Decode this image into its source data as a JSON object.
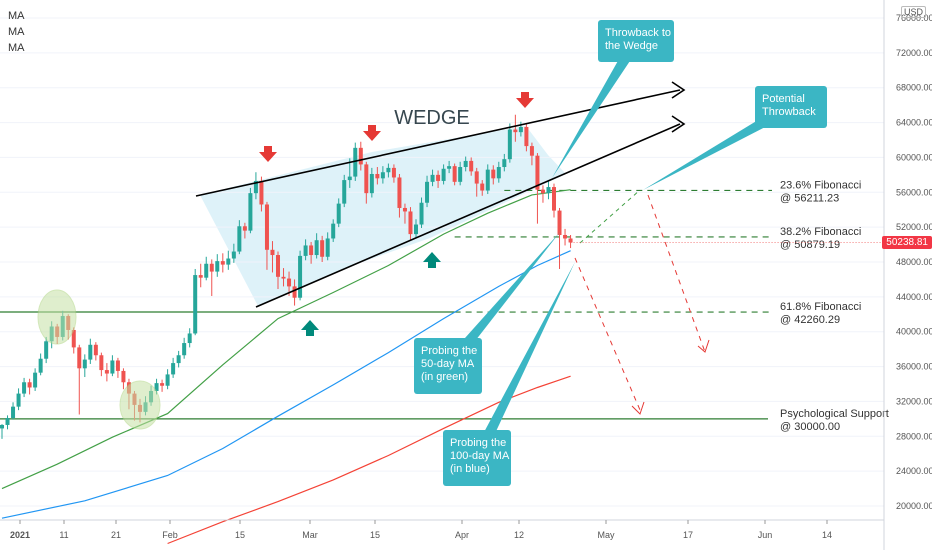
{
  "legend": [
    "MA",
    "MA",
    "MA"
  ],
  "currency": "USD",
  "last_price": "50238.81",
  "colors": {
    "up": "#26a69a",
    "down": "#ef5350",
    "ma50": "#43a047",
    "ma100": "#2196f3",
    "ma200": "#f44336",
    "wedge_fill": "#d6eff7",
    "callout": "#3bb6c4",
    "fib": "#2e7d32",
    "support": "#2e7d32",
    "bear_arrow": "#e53935",
    "bull_arrow": "#00897b"
  },
  "chart_data": {
    "type": "candlestick",
    "title": "",
    "ylim": [
      16000,
      77000
    ],
    "y_ticks": [
      "20000.00",
      "24000.00",
      "28000.00",
      "32000.00",
      "36000.00",
      "40000.00",
      "44000.00",
      "48000.00",
      "52000.00",
      "56000.00",
      "60000.00",
      "64000.00",
      "68000.00",
      "72000.00",
      "76000.00"
    ],
    "x_ticks": [
      "2021",
      "11",
      "21",
      "Feb",
      "15",
      "Mar",
      "15",
      "Apr",
      "12",
      "May",
      "17",
      "Jun",
      "14"
    ],
    "candles": [
      [
        28900,
        29300,
        27700,
        29400
      ],
      [
        29300,
        30100,
        28800,
        30400
      ],
      [
        30100,
        31400,
        29900,
        31900
      ],
      [
        31400,
        32900,
        31000,
        33500
      ],
      [
        32900,
        34200,
        32500,
        34700
      ],
      [
        34200,
        33600,
        32800,
        34600
      ],
      [
        33600,
        35300,
        33200,
        35800
      ],
      [
        35300,
        36900,
        35000,
        37500
      ],
      [
        36900,
        38900,
        36400,
        39400
      ],
      [
        38900,
        40600,
        38100,
        41200
      ],
      [
        40600,
        39400,
        38600,
        40900
      ],
      [
        39400,
        41800,
        39000,
        42400
      ],
      [
        41800,
        40200,
        39100,
        42000
      ],
      [
        40200,
        38200,
        37500,
        40500
      ],
      [
        38200,
        35800,
        30500,
        38500
      ],
      [
        35800,
        36800,
        34800,
        37400
      ],
      [
        36800,
        38500,
        36300,
        39200
      ],
      [
        38500,
        37300,
        36700,
        38800
      ],
      [
        37300,
        35600,
        34900,
        37600
      ],
      [
        35600,
        35200,
        34300,
        36400
      ],
      [
        35200,
        36700,
        34900,
        37300
      ],
      [
        36700,
        35500,
        34700,
        37000
      ],
      [
        35500,
        34200,
        33400,
        35800
      ],
      [
        34200,
        32900,
        31100,
        34600
      ],
      [
        32900,
        31600,
        29800,
        33200
      ],
      [
        31600,
        30800,
        29600,
        32300
      ],
      [
        30800,
        31900,
        30400,
        32600
      ],
      [
        31900,
        33200,
        31500,
        33800
      ],
      [
        33200,
        34100,
        32800,
        34600
      ],
      [
        34100,
        33800,
        33100,
        34500
      ],
      [
        33800,
        35100,
        33400,
        35700
      ],
      [
        35100,
        36400,
        34700,
        37000
      ],
      [
        36400,
        37300,
        35900,
        37800
      ],
      [
        37300,
        38700,
        36900,
        39300
      ],
      [
        38700,
        39800,
        38200,
        40400
      ],
      [
        39800,
        46500,
        39600,
        47200
      ],
      [
        46500,
        46200,
        45100,
        47800
      ],
      [
        46200,
        47800,
        45900,
        48600
      ],
      [
        47800,
        46900,
        44100,
        48300
      ],
      [
        46900,
        48100,
        46300,
        48900
      ],
      [
        48100,
        47700,
        46800,
        49000
      ],
      [
        47700,
        48400,
        47100,
        49300
      ],
      [
        48400,
        49200,
        47900,
        50100
      ],
      [
        49200,
        52100,
        48900,
        52800
      ],
      [
        52100,
        51600,
        50700,
        52500
      ],
      [
        51600,
        55900,
        51300,
        56500
      ],
      [
        55900,
        57300,
        55200,
        58300
      ],
      [
        57300,
        54600,
        53800,
        57800
      ],
      [
        54600,
        49400,
        47100,
        54900
      ],
      [
        49400,
        48800,
        46800,
        50400
      ],
      [
        48800,
        46300,
        44900,
        49200
      ],
      [
        46300,
        46100,
        45200,
        47300
      ],
      [
        46100,
        45200,
        44100,
        46900
      ],
      [
        45200,
        43900,
        43000,
        46000
      ],
      [
        43900,
        48700,
        43600,
        49300
      ],
      [
        48700,
        49900,
        48200,
        50600
      ],
      [
        49900,
        48800,
        47800,
        50300
      ],
      [
        48800,
        50500,
        48400,
        51300
      ],
      [
        50500,
        48600,
        48000,
        51000
      ],
      [
        48600,
        50700,
        48200,
        51400
      ],
      [
        50700,
        52400,
        50300,
        52900
      ],
      [
        52400,
        54700,
        52000,
        55300
      ],
      [
        54700,
        57400,
        54300,
        58000
      ],
      [
        57400,
        57800,
        56500,
        59900
      ],
      [
        57800,
        61100,
        57300,
        61700
      ],
      [
        61100,
        59200,
        58500,
        61800
      ],
      [
        59200,
        55900,
        54700,
        59500
      ],
      [
        55900,
        58100,
        55400,
        58800
      ],
      [
        58100,
        57600,
        56900,
        58900
      ],
      [
        57600,
        58300,
        57000,
        59000
      ],
      [
        58300,
        58800,
        57700,
        59300
      ],
      [
        58800,
        57700,
        57100,
        59200
      ],
      [
        57700,
        54200,
        53100,
        58100
      ],
      [
        54200,
        53800,
        52400,
        54700
      ],
      [
        53800,
        51200,
        50500,
        54300
      ],
      [
        51200,
        52300,
        50700,
        52900
      ],
      [
        52300,
        54800,
        51900,
        55400
      ],
      [
        54800,
        57200,
        54300,
        57900
      ],
      [
        57200,
        58000,
        56700,
        58600
      ],
      [
        58000,
        57300,
        56500,
        58500
      ],
      [
        57300,
        58700,
        56900,
        59200
      ],
      [
        58700,
        59000,
        58200,
        59600
      ],
      [
        59000,
        57200,
        56800,
        59300
      ],
      [
        57200,
        58900,
        56800,
        59500
      ],
      [
        58900,
        59600,
        58400,
        60100
      ],
      [
        59600,
        58400,
        57900,
        60000
      ],
      [
        58400,
        57000,
        55500,
        58800
      ],
      [
        57000,
        56200,
        55600,
        57400
      ],
      [
        56200,
        58600,
        55800,
        59200
      ],
      [
        58600,
        57600,
        56900,
        59100
      ],
      [
        57600,
        58900,
        57100,
        59500
      ],
      [
        58900,
        59800,
        58400,
        60400
      ],
      [
        59800,
        63200,
        59400,
        63900
      ],
      [
        63200,
        62900,
        61800,
        64900
      ],
      [
        62900,
        63500,
        62400,
        64100
      ],
      [
        63500,
        61300,
        60700,
        63800
      ],
      [
        61300,
        60200,
        59100,
        61700
      ],
      [
        60200,
        56300,
        52400,
        60500
      ],
      [
        56300,
        55900,
        54800,
        56800
      ],
      [
        55900,
        56600,
        55200,
        57300
      ],
      [
        56600,
        53900,
        53100,
        57000
      ],
      [
        53900,
        51100,
        47200,
        54200
      ],
      [
        51100,
        50700,
        49900,
        51800
      ],
      [
        50700,
        50239,
        49600,
        51100
      ]
    ],
    "series": [
      {
        "name": "",
        "type": "ma",
        "period": 50,
        "color": "#43a047",
        "points": [
          [
            0,
            22000
          ],
          [
            10,
            24800
          ],
          [
            20,
            27900
          ],
          [
            30,
            30600
          ],
          [
            40,
            36200
          ],
          [
            50,
            41500
          ],
          [
            60,
            44500
          ],
          [
            70,
            47600
          ],
          [
            80,
            51200
          ],
          [
            88,
            53600
          ],
          [
            96,
            55700
          ],
          [
            103,
            56300
          ]
        ]
      },
      {
        "name": "",
        "type": "ma",
        "period": 100,
        "color": "#2196f3",
        "points": [
          [
            0,
            18600
          ],
          [
            15,
            20600
          ],
          [
            30,
            23500
          ],
          [
            40,
            26600
          ],
          [
            50,
            30300
          ],
          [
            60,
            33900
          ],
          [
            70,
            37600
          ],
          [
            80,
            41500
          ],
          [
            90,
            45200
          ],
          [
            97,
            47600
          ],
          [
            103,
            49300
          ]
        ]
      },
      {
        "name": "",
        "type": "ma",
        "period": 200,
        "color": "#f44336",
        "points": [
          [
            30,
            15700
          ],
          [
            40,
            18200
          ],
          [
            50,
            20500
          ],
          [
            60,
            23000
          ],
          [
            70,
            25800
          ],
          [
            80,
            28900
          ],
          [
            90,
            31900
          ],
          [
            97,
            33600
          ],
          [
            103,
            34900
          ]
        ]
      }
    ],
    "horizontal_lines": [
      {
        "label": "23.6% Fibonacci\n@ 56211.23",
        "value": 56211.23,
        "style": "dashed",
        "from_index": 91
      },
      {
        "label": "38.2% Fibonacci\n@ 50879.19",
        "value": 50879.19,
        "style": "dashed",
        "from_index": 82
      },
      {
        "label": "61.8% Fibonacci\n@ 42260.29",
        "value": 42260.29,
        "style": "dashed",
        "from_index": 82
      },
      {
        "label": "Psychological Support\n@ 30000.00",
        "value": 30000.0,
        "style": "solid",
        "from_index": 0
      }
    ],
    "annotations": {
      "pattern_label": "WEDGE",
      "callouts": [
        {
          "text": "Throwback to\nthe Wedge"
        },
        {
          "text": "Potential\nThrowback"
        },
        {
          "text": "Probing the\n50-day MA\n(in green)"
        },
        {
          "text": "Probing the\n100-day MA\n(in blue)"
        }
      ]
    }
  }
}
